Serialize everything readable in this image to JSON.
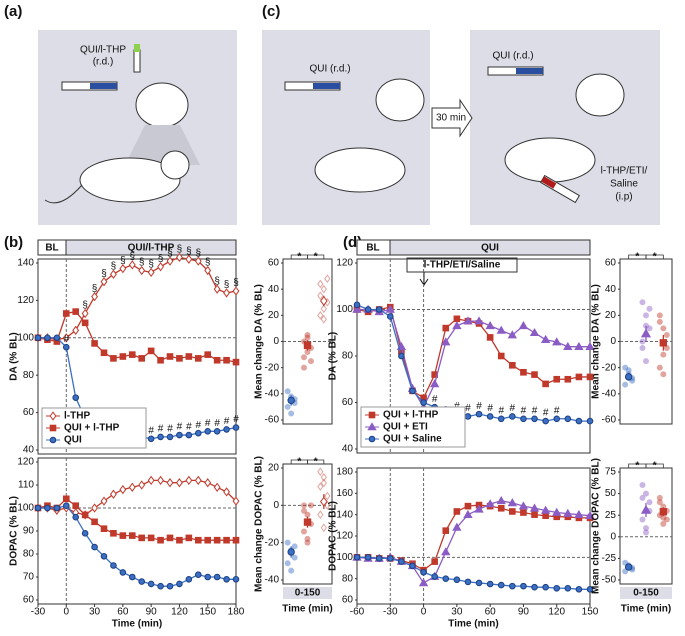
{
  "panel_labels": [
    "(a)",
    "(b)",
    "(c)",
    "(d)"
  ],
  "diagrams": {
    "a": [
      "QUI/l-THP",
      "(r.d.)"
    ],
    "c_left": "QUI (r.d.)",
    "c_arrow": "30 min",
    "c_right": "QUI (r.d.)",
    "c_ip": [
      "l-THP/ETI/",
      "Saline",
      "(i.p)"
    ]
  },
  "headers": {
    "b": [
      "BL",
      "QUI/l-THP"
    ],
    "d": [
      "BL",
      "QUI"
    ],
    "d_injection": "l-THP/ETI/Saline"
  },
  "chart_data": [
    {
      "type": "line",
      "ylabel": "DA (% BL)",
      "xlim": [
        -30,
        180
      ],
      "ylim": [
        40,
        140
      ],
      "yticks": [
        40,
        60,
        80,
        100,
        120,
        140
      ],
      "hline": 100,
      "vlines": [
        0
      ],
      "legend": "lower left",
      "x": [
        -30,
        -20,
        -10,
        0,
        10,
        20,
        30,
        40,
        50,
        60,
        70,
        80,
        90,
        100,
        110,
        120,
        130,
        140,
        150,
        160,
        170,
        180
      ],
      "series": [
        {
          "name": "l-THP",
          "color": "#c0392b",
          "marker": "diamond-open",
          "values": [
            100,
            100,
            99,
            100,
            104,
            113,
            122,
            130,
            134,
            137,
            139,
            136,
            135,
            138,
            141,
            143,
            142,
            141,
            136,
            126,
            124,
            125
          ],
          "point_labels": [
            null,
            null,
            null,
            null,
            null,
            "§",
            "§",
            "§",
            "§",
            "§",
            "§",
            "§",
            "§",
            "§",
            "§",
            "§",
            "§",
            "§",
            "§",
            "§",
            "§",
            "§"
          ]
        },
        {
          "name": "QUI + l-THP",
          "color": "#c0392b",
          "marker": "square",
          "values": [
            100,
            99,
            98,
            113,
            114,
            108,
            97,
            92,
            89,
            90,
            91,
            89,
            93,
            88,
            90,
            89,
            90,
            89,
            91,
            88,
            88,
            87
          ]
        },
        {
          "name": "QUI",
          "color": "#3a6fc4",
          "marker": "circle",
          "values": [
            100,
            100,
            100,
            95,
            68,
            57,
            53,
            51,
            50,
            49,
            48,
            47,
            46,
            47,
            47,
            48,
            48,
            49,
            50,
            50,
            51,
            52
          ],
          "point_labels": [
            null,
            null,
            null,
            "#",
            null,
            null,
            "#",
            "#",
            "#",
            "#",
            "#",
            "#",
            "#",
            "#",
            "#",
            "#",
            "#",
            "#",
            "#",
            "#",
            "#",
            "#"
          ]
        }
      ]
    },
    {
      "type": "line",
      "ylabel": "DOPAC (% BL)",
      "xlabel": "Time (min)",
      "xlim": [
        -30,
        180
      ],
      "xticks": [
        -30,
        0,
        30,
        60,
        90,
        120,
        150,
        180
      ],
      "ylim": [
        60,
        120
      ],
      "yticks": [
        60,
        70,
        80,
        90,
        100,
        110,
        120
      ],
      "hline": 100,
      "vlines": [
        0
      ],
      "x": [
        -30,
        -20,
        -10,
        0,
        10,
        20,
        30,
        40,
        50,
        60,
        70,
        80,
        90,
        100,
        110,
        120,
        130,
        140,
        150,
        160,
        170,
        180
      ],
      "series": [
        {
          "color": "#c0392b",
          "marker": "diamond-open",
          "values": [
            100,
            100,
            99,
            100,
            98,
            97,
            100,
            103,
            106,
            108,
            109,
            110,
            112,
            112,
            111,
            111,
            112,
            112,
            111,
            109,
            107,
            103
          ]
        },
        {
          "color": "#c0392b",
          "marker": "square",
          "values": [
            100,
            101,
            100,
            104,
            101,
            97,
            94,
            91,
            89,
            88,
            88,
            87,
            87,
            86,
            87,
            86,
            87,
            86,
            86,
            86,
            86,
            86
          ]
        },
        {
          "color": "#3a6fc4",
          "marker": "circle",
          "values": [
            100,
            100,
            100,
            101,
            96,
            89,
            83,
            79,
            75,
            72,
            70,
            68,
            67,
            66,
            66,
            67,
            69,
            71,
            70,
            70,
            69,
            69
          ]
        }
      ]
    },
    {
      "type": "dot",
      "ylabel": "Mean change DA (% BL)",
      "ylim": [
        -60,
        60
      ],
      "yticks": [
        -60,
        -40,
        -20,
        0,
        20,
        40,
        60
      ],
      "hline": 0,
      "significance": [
        "*",
        "*"
      ],
      "series": [
        {
          "color": "#3a6fc4",
          "marker": "circle",
          "values": [
            -38,
            -42,
            -47,
            -50,
            -55,
            -44
          ],
          "mean": -45,
          "error": 4
        },
        {
          "color": "#c0392b",
          "marker": "square",
          "values": [
            -12,
            -8,
            -5,
            0,
            5,
            -15,
            -20,
            3
          ],
          "mean": -3,
          "error": 4
        },
        {
          "color": "#c0392b",
          "marker": "diamond-open",
          "values": [
            20,
            25,
            30,
            35,
            40,
            48,
            44,
            17
          ],
          "mean": 31,
          "error": 4
        }
      ]
    },
    {
      "type": "dot",
      "ylabel": "Mean change DOPAC (% BL)",
      "xlabel": "Time (min)",
      "xcategory": "0-150",
      "ylim": [
        -40,
        20
      ],
      "yticks": [
        -40,
        -20,
        0,
        20
      ],
      "hline": 0,
      "significance": [
        "*",
        "*"
      ],
      "series": [
        {
          "color": "#3a6fc4",
          "marker": "circle",
          "values": [
            -20,
            -24,
            -28,
            -31,
            -35,
            -22
          ],
          "mean": -25,
          "error": 3
        },
        {
          "color": "#c0392b",
          "marker": "square",
          "values": [
            0,
            -5,
            -10,
            -14,
            -18,
            0,
            -3,
            -20
          ],
          "mean": -9,
          "error": 3
        },
        {
          "color": "#c0392b",
          "marker": "diamond-open",
          "values": [
            10,
            15,
            5,
            -5,
            -12,
            0,
            18,
            12
          ],
          "mean": 2,
          "error": 4
        }
      ]
    },
    {
      "type": "line",
      "ylabel": "DA (% BL)",
      "xlim": [
        -60,
        150
      ],
      "ylim": [
        40,
        120
      ],
      "yticks": [
        40,
        60,
        80,
        100,
        120
      ],
      "hline": 100,
      "vlines": [
        -30,
        0
      ],
      "legend": "lower left",
      "x": [
        -60,
        -50,
        -40,
        -30,
        -20,
        -10,
        0,
        10,
        20,
        30,
        40,
        50,
        60,
        70,
        80,
        90,
        100,
        110,
        120,
        130,
        140,
        150
      ],
      "series": [
        {
          "name": "QUI + l-THP",
          "color": "#c0392b",
          "marker": "square",
          "values": [
            100,
            99,
            100,
            101,
            82,
            65,
            62,
            72,
            92,
            96,
            95,
            94,
            88,
            80,
            76,
            73,
            72,
            68,
            70,
            70,
            71,
            71
          ]
        },
        {
          "name": "QUI + ETI",
          "color": "#8b5cc4",
          "marker": "triangle",
          "values": [
            100,
            100,
            99,
            100,
            84,
            66,
            58,
            68,
            86,
            93,
            95,
            95,
            93,
            91,
            89,
            93,
            90,
            87,
            86,
            84,
            84,
            84
          ]
        },
        {
          "name": "QUI + Saline",
          "color": "#3a6fc4",
          "marker": "circle",
          "values": [
            102,
            100,
            100,
            97,
            80,
            65,
            60,
            58,
            57,
            55,
            54,
            55,
            54,
            53,
            54,
            53,
            53,
            52,
            53,
            53,
            52,
            52
          ],
          "point_labels": [
            null,
            null,
            null,
            null,
            null,
            null,
            null,
            "#",
            null,
            "#",
            "#",
            "#",
            "#",
            "#",
            "#",
            "#",
            "#",
            "#",
            "#",
            null,
            null,
            null
          ]
        }
      ]
    },
    {
      "type": "line",
      "ylabel": "DOPAC (% BL)",
      "xlabel": "Time (min)",
      "xlim": [
        -60,
        150
      ],
      "xticks": [
        -60,
        -30,
        0,
        30,
        60,
        90,
        120,
        150
      ],
      "ylim": [
        60,
        180
      ],
      "yticks": [
        60,
        80,
        100,
        120,
        140,
        160,
        180
      ],
      "hline": 100,
      "vlines": [
        -30,
        0
      ],
      "x": [
        -60,
        -50,
        -40,
        -30,
        -20,
        -10,
        0,
        10,
        20,
        30,
        40,
        50,
        60,
        70,
        80,
        90,
        100,
        110,
        120,
        130,
        140,
        150
      ],
      "series": [
        {
          "color": "#c0392b",
          "marker": "square",
          "values": [
            100,
            100,
            99,
            99,
            97,
            94,
            88,
            96,
            125,
            143,
            148,
            149,
            148,
            146,
            143,
            142,
            140,
            139,
            138,
            138,
            137,
            137
          ]
        },
        {
          "color": "#8b5cc4",
          "marker": "triangle",
          "values": [
            100,
            99,
            99,
            100,
            96,
            92,
            76,
            82,
            105,
            128,
            140,
            145,
            150,
            153,
            151,
            148,
            146,
            144,
            142,
            141,
            140,
            139
          ]
        },
        {
          "color": "#3a6fc4",
          "marker": "circle",
          "values": [
            100,
            100,
            99,
            99,
            96,
            92,
            86,
            82,
            80,
            79,
            77,
            76,
            75,
            74,
            73,
            73,
            72,
            72,
            71,
            71,
            70,
            70
          ]
        }
      ]
    },
    {
      "type": "dot",
      "ylabel": "Mean change DA (% BL)",
      "ylim": [
        -60,
        60
      ],
      "yticks": [
        -60,
        -40,
        -20,
        0,
        20,
        40,
        60
      ],
      "hline": 0,
      "significance": [
        "*",
        "*"
      ],
      "series": [
        {
          "color": "#3a6fc4",
          "marker": "circle",
          "values": [
            -20,
            -25,
            -30,
            -33,
            -22,
            -28
          ],
          "mean": -27,
          "error": 3
        },
        {
          "color": "#8b5cc4",
          "marker": "triangle",
          "values": [
            30,
            20,
            10,
            -5,
            -15,
            25,
            0,
            12
          ],
          "mean": 6,
          "error": 6
        },
        {
          "color": "#c0392b",
          "marker": "square",
          "values": [
            20,
            10,
            -5,
            -20,
            -10,
            5,
            15,
            -25
          ],
          "mean": -1,
          "error": 6
        }
      ]
    },
    {
      "type": "dot",
      "ylabel": "Mean change DOPAC (% BL)",
      "xlabel": "Time (min)",
      "xcategory": "0-150",
      "ylim": [
        -50,
        75
      ],
      "yticks": [
        -50,
        -25,
        0,
        25,
        50,
        75
      ],
      "hline": 0,
      "significance": [
        "*",
        "*"
      ],
      "series": [
        {
          "color": "#3a6fc4",
          "marker": "circle",
          "values": [
            -30,
            -35,
            -38,
            -40,
            -33,
            -36
          ],
          "mean": -35,
          "error": 3
        },
        {
          "color": "#8b5cc4",
          "marker": "triangle",
          "values": [
            60,
            50,
            40,
            20,
            10,
            30,
            45,
            5
          ],
          "mean": 31,
          "error": 8
        },
        {
          "color": "#c0392b",
          "marker": "square",
          "values": [
            40,
            35,
            20,
            25,
            15,
            30,
            45,
            22
          ],
          "mean": 29,
          "error": 5
        }
      ]
    }
  ]
}
